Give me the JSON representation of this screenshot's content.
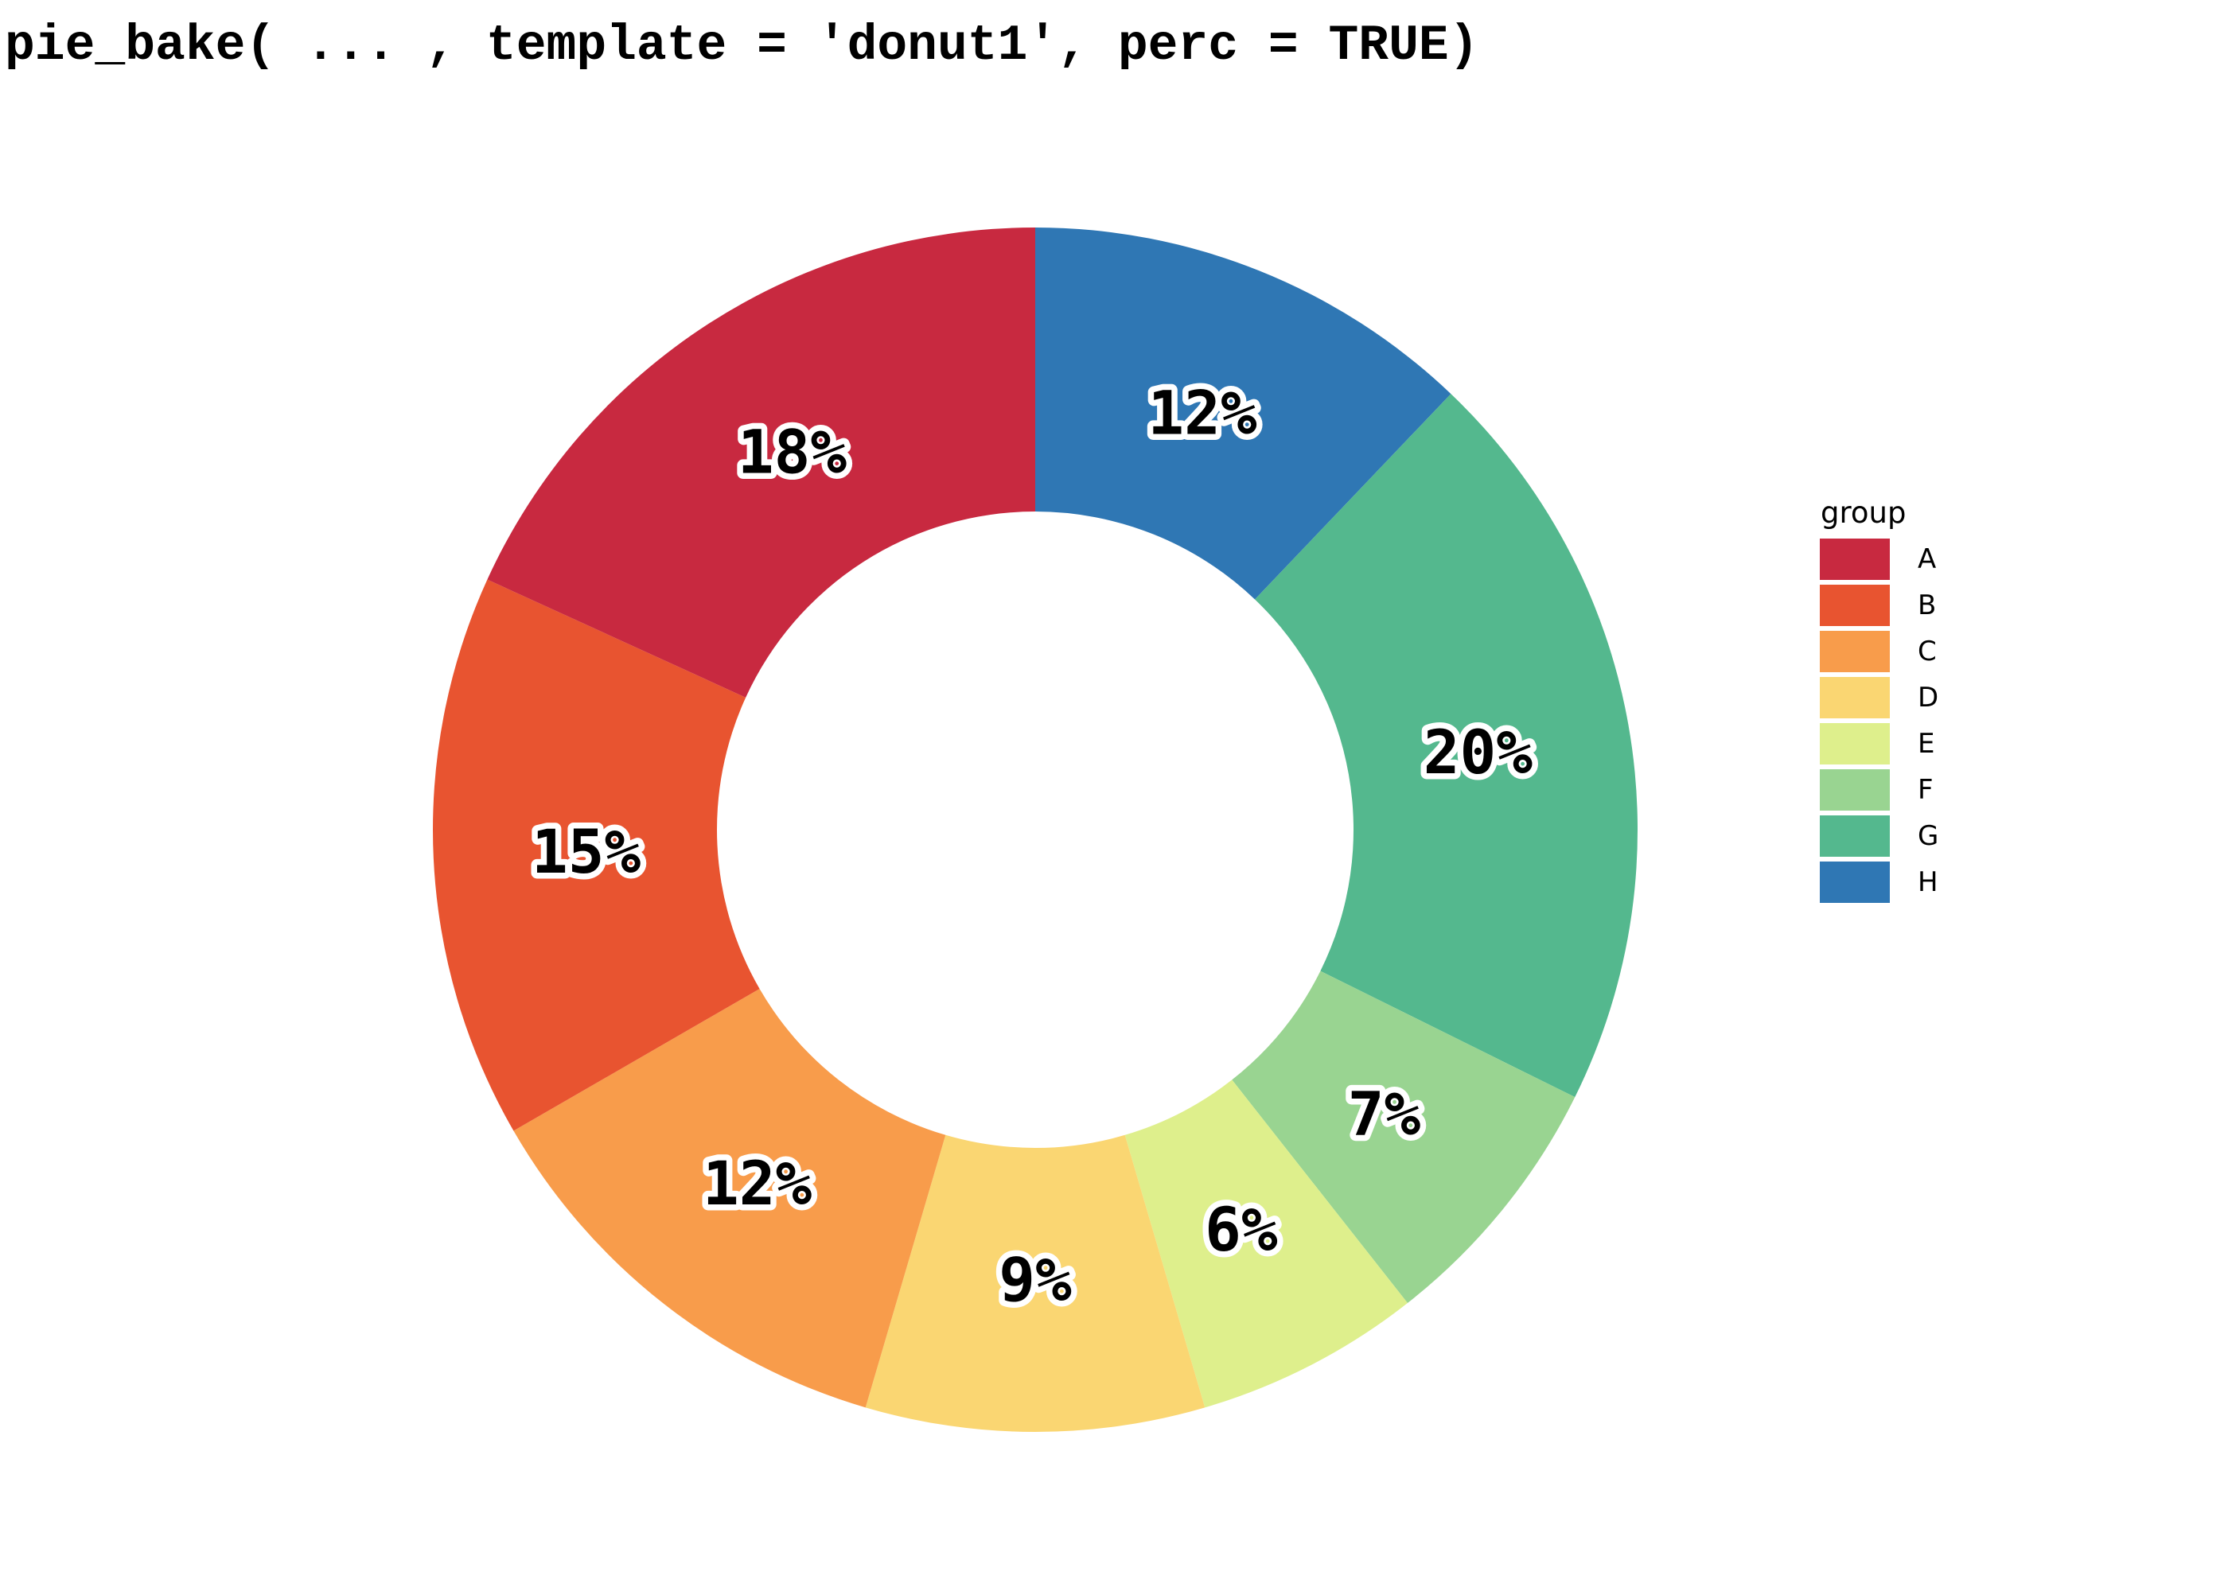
{
  "title": "pie_bake( ... , template = 'donut1', perc = TRUE)",
  "chart_data": {
    "type": "pie",
    "subtype": "donut",
    "title": "pie_bake( ... , template = 'donut1', perc = TRUE)",
    "categories": [
      "A",
      "B",
      "C",
      "D",
      "E",
      "F",
      "G",
      "H"
    ],
    "values": [
      18,
      15,
      12,
      9,
      6,
      7,
      20,
      12
    ],
    "labels": [
      "18%",
      "15%",
      "12%",
      "9%",
      "6%",
      "7%",
      "20%",
      "12%"
    ],
    "colors": [
      "#C82940",
      "#E85430",
      "#F89C4B",
      "#FAD672",
      "#DEEF8C",
      "#99D491",
      "#54B88E",
      "#2F77B4"
    ],
    "order_note": "segments run counterclockwise A-H starting at 12 o'clock (clockwise from top: H, G, F, E, D, C, B, A)",
    "donut_hole_ratio": 0.53,
    "label_color": "#000000",
    "label_outline_color": "#ffffff",
    "legend_position": "right",
    "background": "#ffffff"
  },
  "legend": {
    "title": "group",
    "items": [
      {
        "label": "A",
        "color": "#C82940"
      },
      {
        "label": "B",
        "color": "#E85430"
      },
      {
        "label": "C",
        "color": "#F89C4B"
      },
      {
        "label": "D",
        "color": "#FAD672"
      },
      {
        "label": "E",
        "color": "#DEEF8C"
      },
      {
        "label": "F",
        "color": "#99D491"
      },
      {
        "label": "G",
        "color": "#54B88E"
      },
      {
        "label": "H",
        "color": "#2F77B4"
      }
    ]
  }
}
